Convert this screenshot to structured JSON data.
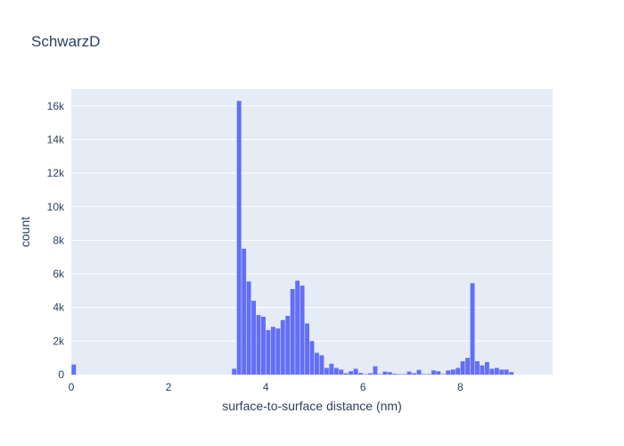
{
  "chart_data": {
    "type": "bar",
    "title": "SchwarzD",
    "xlabel": "surface-to-surface distance (nm)",
    "ylabel": "count",
    "xlim": [
      0,
      9.9
    ],
    "ylim": [
      0,
      17000
    ],
    "x_ticks": [
      "0",
      "2",
      "4",
      "6",
      "8"
    ],
    "y_ticks": [
      "0",
      "2k",
      "4k",
      "6k",
      "8k",
      "10k",
      "12k",
      "14k",
      "16k"
    ],
    "bin_width": 0.1,
    "grid": true,
    "colors": {
      "bar": "#636efa",
      "plot_bg": "#e5ecf6",
      "grid": "#ffffff",
      "text": "#2a3f5f"
    },
    "x": [
      0.0,
      3.3,
      3.4,
      3.5,
      3.6,
      3.7,
      3.8,
      3.9,
      4.0,
      4.1,
      4.2,
      4.3,
      4.4,
      4.5,
      4.6,
      4.7,
      4.8,
      4.9,
      5.0,
      5.1,
      5.2,
      5.3,
      5.4,
      5.5,
      5.6,
      5.7,
      5.8,
      5.9,
      6.0,
      6.1,
      6.2,
      6.3,
      6.4,
      6.5,
      6.6,
      6.7,
      6.8,
      6.9,
      7.0,
      7.1,
      7.2,
      7.3,
      7.4,
      7.5,
      7.6,
      7.7,
      7.8,
      7.9,
      8.0,
      8.1,
      8.2,
      8.3,
      8.4,
      8.5,
      8.6,
      8.7,
      8.8,
      8.9,
      9.0
    ],
    "values": [
      600,
      350,
      16300,
      7500,
      5550,
      4400,
      3550,
      3450,
      2650,
      2850,
      2750,
      3250,
      3500,
      5100,
      5600,
      5300,
      3050,
      2000,
      1300,
      1150,
      400,
      650,
      400,
      300,
      80,
      200,
      350,
      100,
      30,
      80,
      500,
      30,
      180,
      150,
      50,
      30,
      30,
      180,
      80,
      280,
      30,
      30,
      250,
      200,
      30,
      250,
      300,
      400,
      800,
      1000,
      5450,
      800,
      550,
      750,
      350,
      400,
      300,
      300,
      150
    ]
  }
}
